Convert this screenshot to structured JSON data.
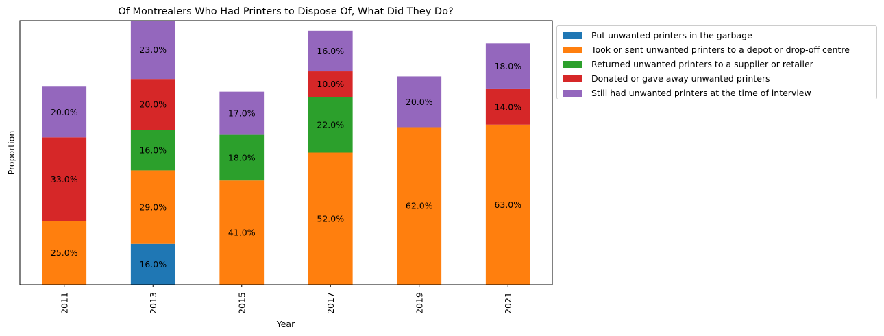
{
  "chart_data": {
    "type": "bar",
    "stacked": true,
    "title": "Of Montrealers Who Had Printers to Dispose Of, What Did They Do?",
    "xlabel": "Year",
    "ylabel": "Proportion",
    "categories": [
      "2011",
      "2013",
      "2015",
      "2017",
      "2019",
      "2021"
    ],
    "ylim": [
      0,
      104
    ],
    "legend_position": "outside-top-right",
    "series": [
      {
        "name": "Put unwanted printers in the garbage",
        "color": "#1f77b4",
        "values": [
          null,
          16,
          null,
          null,
          null,
          null
        ],
        "labels": [
          "",
          "16.0%",
          "",
          "",
          "",
          ""
        ]
      },
      {
        "name": "Took or sent unwanted printers to a depot or drop-off centre",
        "color": "#ff7f0e",
        "values": [
          25,
          29,
          41,
          52,
          62,
          63
        ],
        "labels": [
          "25.0%",
          "29.0%",
          "41.0%",
          "52.0%",
          "62.0%",
          "63.0%"
        ]
      },
      {
        "name": "Returned unwanted printers to a supplier or retailer",
        "color": "#2ca02c",
        "values": [
          null,
          16,
          18,
          22,
          null,
          null
        ],
        "labels": [
          "",
          "16.0%",
          "18.0%",
          "22.0%",
          "",
          ""
        ]
      },
      {
        "name": "Donated or gave away unwanted printers",
        "color": "#d62728",
        "values": [
          33,
          20,
          null,
          10,
          null,
          14
        ],
        "labels": [
          "33.0%",
          "20.0%",
          "",
          "10.0%",
          "",
          "14.0%"
        ]
      },
      {
        "name": "Still had unwanted printers at the time of interview",
        "color": "#9467bd",
        "values": [
          20,
          23,
          17,
          16,
          20,
          18
        ],
        "labels": [
          "20.0%",
          "23.0%",
          "17.0%",
          "16.0%",
          "20.0%",
          "18.0%"
        ]
      }
    ]
  }
}
